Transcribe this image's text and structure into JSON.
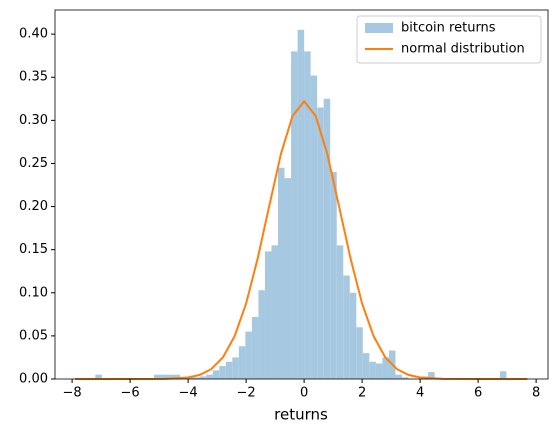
{
  "chart_data": {
    "type": "histogram",
    "xlabel": "returns",
    "bins": [
      -7.2,
      -6.975,
      -6.75,
      -6.525,
      -6.3,
      -6.075,
      -5.85,
      -5.625,
      -5.4,
      -5.175,
      -4.95,
      -4.725,
      -4.5,
      -4.275,
      -4.05,
      -3.825,
      -3.6,
      -3.375,
      -3.15,
      -2.925,
      -2.7,
      -2.475,
      -2.25,
      -2.025,
      -1.8,
      -1.575,
      -1.35,
      -1.125,
      -0.9,
      -0.675,
      -0.45,
      -0.225,
      0,
      0.225,
      0.45,
      0.675,
      0.9,
      1.125,
      1.35,
      1.575,
      1.8,
      2.025,
      2.25,
      2.475,
      2.7,
      2.925,
      3.15,
      3.375,
      3.6,
      3.825,
      4.05,
      4.275,
      4.5,
      4.725,
      4.95,
      5.175,
      5.4,
      5.625,
      5.85,
      6.075,
      6.3,
      6.525,
      6.75,
      6.975
    ],
    "series": [
      {
        "name": "bitcoin returns",
        "color": "#a6c8e1",
        "values": [
          0.005,
          0,
          0,
          0,
          0,
          0,
          0,
          0,
          0,
          0.005,
          0.005,
          0.005,
          0.005,
          0,
          0.002,
          0.002,
          0.003,
          0.005,
          0.01,
          0.015,
          0.02,
          0.025,
          0.038,
          0.055,
          0.072,
          0.103,
          0.148,
          0.155,
          0.245,
          0.233,
          0.38,
          0.405,
          0.38,
          0.352,
          0.315,
          0.325,
          0.24,
          0.155,
          0.12,
          0.1,
          0.06,
          0.03,
          0.02,
          0.018,
          0.025,
          0.033,
          0.005,
          0.002,
          0,
          0,
          0.003,
          0.008,
          0,
          0,
          0,
          0,
          0,
          0,
          0,
          0,
          0,
          0,
          0.009
        ]
      },
      {
        "name": "normal distribution",
        "color": "#ff7f0e",
        "x": [
          -7.9,
          -6,
          -4.8,
          -4,
          -3.6,
          -3.2,
          -2.8,
          -2.4,
          -2,
          -1.6,
          -1.2,
          -0.8,
          -0.4,
          0,
          0.4,
          0.8,
          1.2,
          1.6,
          2,
          2.4,
          2.8,
          3.2,
          3.6,
          4,
          4.8,
          6,
          7.7
        ],
        "values": [
          0,
          0,
          0.0002,
          0.00177,
          0.00475,
          0.0115,
          0.0251,
          0.0494,
          0.0875,
          0.14,
          0.201,
          0.261,
          0.305,
          0.322,
          0.305,
          0.261,
          0.201,
          0.14,
          0.0875,
          0.0494,
          0.0251,
          0.0115,
          0.00475,
          0.00177,
          0.0002,
          0,
          0
        ]
      }
    ],
    "xlim": [
      -8.59,
      8.41
    ],
    "ylim": [
      0,
      0.428
    ],
    "xticks": [
      {
        "value": -8,
        "label": "−8"
      },
      {
        "value": -6,
        "label": "−6"
      },
      {
        "value": -4,
        "label": "−4"
      },
      {
        "value": -2,
        "label": "−2"
      },
      0,
      2,
      4,
      6,
      8
    ],
    "yticks": [
      {
        "value": 0,
        "label": "0.00"
      },
      {
        "value": 0.05,
        "label": "0.05"
      },
      {
        "value": 0.1,
        "label": "0.10"
      },
      {
        "value": 0.15,
        "label": "0.15"
      },
      {
        "value": 0.2,
        "label": "0.20"
      },
      {
        "value": 0.25,
        "label": "0.25"
      },
      {
        "value": 0.3,
        "label": "0.30"
      },
      {
        "value": 0.35,
        "label": "0.35"
      },
      {
        "value": 0.4,
        "label": "0.40"
      }
    ],
    "legend": "upper right"
  }
}
